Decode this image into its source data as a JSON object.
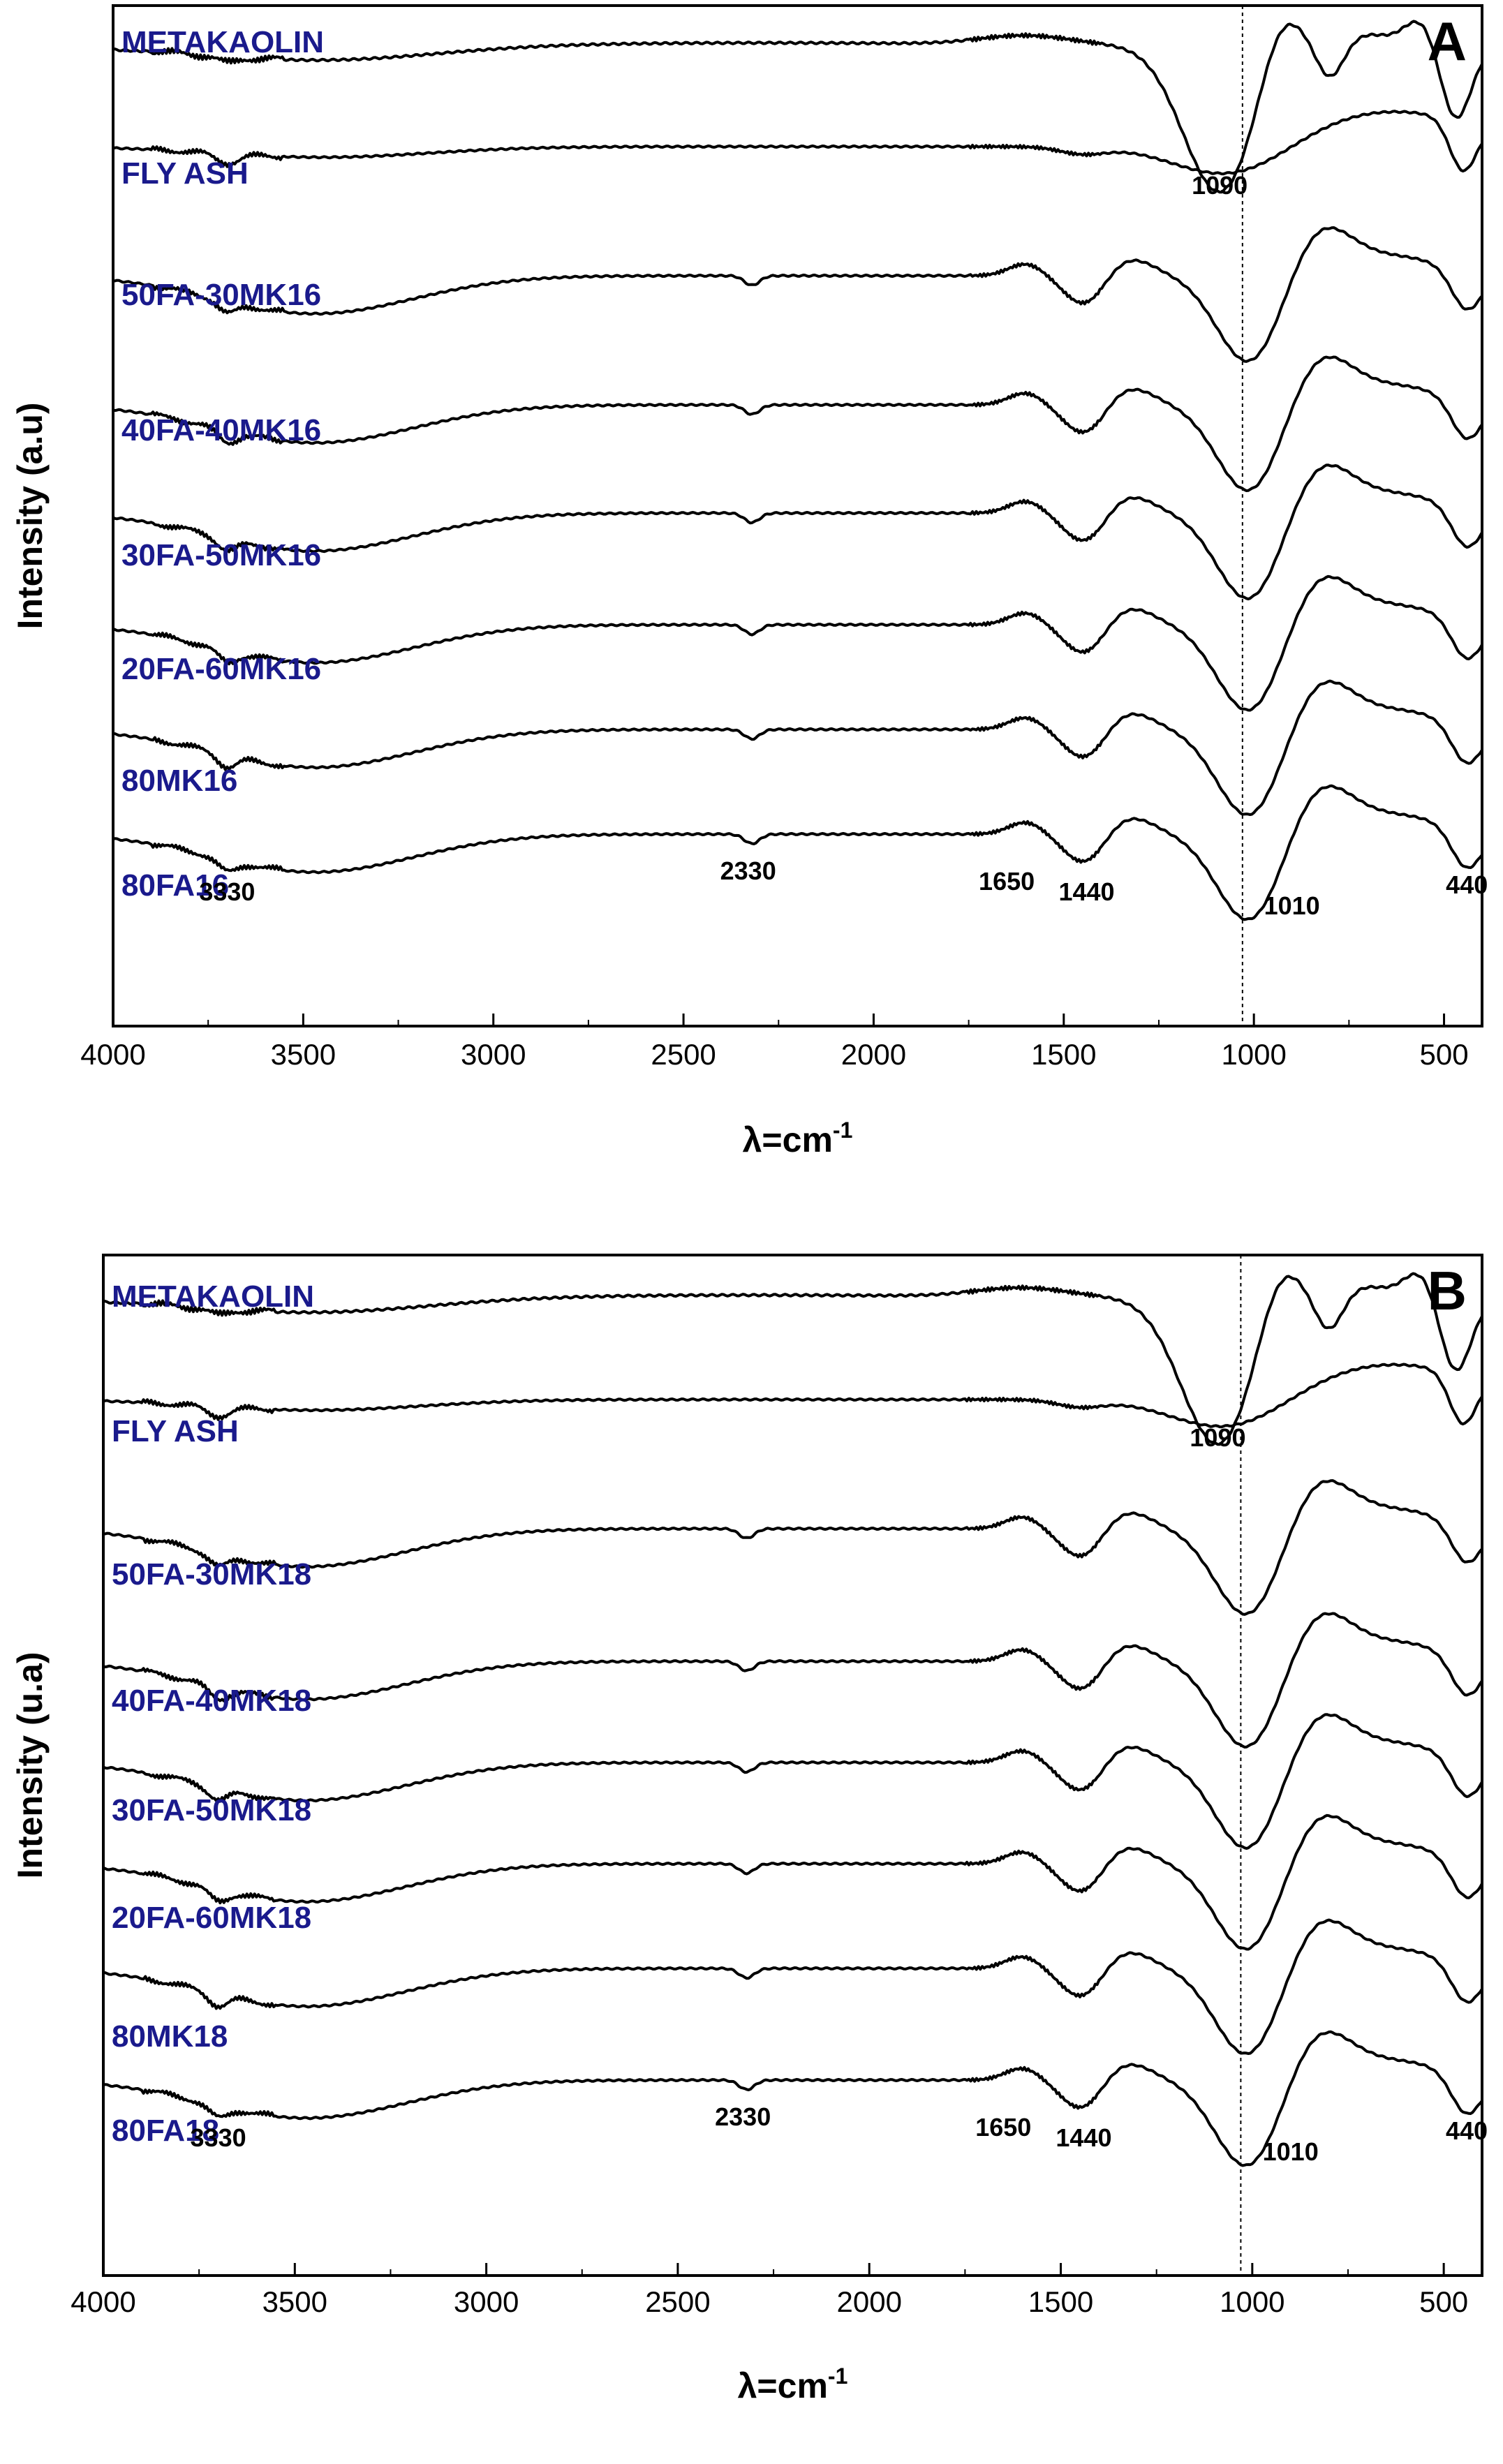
{
  "chart_data": [
    {
      "type": "line",
      "panel_label": "A",
      "xlabel_main": "λ=cm",
      "xlabel_sup": "-1",
      "ylabel": "Intensity (a.u)",
      "xlim": [
        4000,
        400
      ],
      "x_ticks": [
        4000,
        3500,
        3000,
        2500,
        2000,
        1500,
        1000,
        500
      ],
      "y_ticks_shown": false,
      "reference_line_x": 1030,
      "series": [
        {
          "name": "METAKAOLIN",
          "shape": "metakaolin"
        },
        {
          "name": "FLY ASH",
          "shape": "flyash"
        },
        {
          "name": "50FA-30MK16",
          "shape": "geo"
        },
        {
          "name": "40FA-40MK16",
          "shape": "geo"
        },
        {
          "name": "30FA-50MK16",
          "shape": "geo"
        },
        {
          "name": "20FA-60MK16",
          "shape": "geo"
        },
        {
          "name": "80MK16",
          "shape": "geo"
        },
        {
          "name": "80FA16",
          "shape": "geo"
        }
      ],
      "annotations": [
        {
          "text": "1090",
          "x": 1090,
          "series": 0
        },
        {
          "text": "3330",
          "x": 3700,
          "series": 7
        },
        {
          "text": "2330",
          "x": 2330,
          "series": 7
        },
        {
          "text": "1650",
          "x": 1650,
          "series": 7
        },
        {
          "text": "1440",
          "x": 1440,
          "series": 7
        },
        {
          "text": "1010",
          "x": 900,
          "series": 7
        },
        {
          "text": "440",
          "x": 440,
          "series": 7
        }
      ]
    },
    {
      "type": "line",
      "panel_label": "B",
      "xlabel_main": "λ=cm",
      "xlabel_sup": "-1",
      "ylabel": "Intensity (u.a)",
      "xlim": [
        4000,
        400
      ],
      "x_ticks": [
        4000,
        3500,
        3000,
        2500,
        2000,
        1500,
        1000,
        500
      ],
      "y_ticks_shown": false,
      "reference_line_x": 1030,
      "series": [
        {
          "name": "METAKAOLIN",
          "shape": "metakaolin"
        },
        {
          "name": "FLY ASH",
          "shape": "flyash"
        },
        {
          "name": "50FA-30MK18",
          "shape": "geo"
        },
        {
          "name": "40FA-40MK18",
          "shape": "geo"
        },
        {
          "name": "30FA-50MK18",
          "shape": "geo"
        },
        {
          "name": "20FA-60MK18",
          "shape": "geo"
        },
        {
          "name": "80MK18",
          "shape": "geo"
        },
        {
          "name": "80FA18",
          "shape": "geo"
        }
      ],
      "annotations": [
        {
          "text": "1090",
          "x": 1090,
          "series": 0
        },
        {
          "text": "3330",
          "x": 3700,
          "series": 7
        },
        {
          "text": "2330",
          "x": 2330,
          "series": 7
        },
        {
          "text": "1650",
          "x": 1650,
          "series": 7
        },
        {
          "text": "1440",
          "x": 1440,
          "series": 7
        },
        {
          "text": "1010",
          "x": 900,
          "series": 7
        },
        {
          "text": "440",
          "x": 440,
          "series": 7
        }
      ]
    }
  ]
}
